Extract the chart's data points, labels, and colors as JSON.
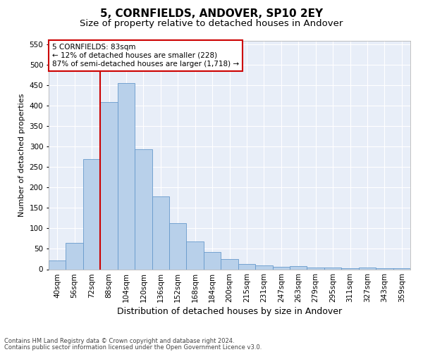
{
  "title": "5, CORNFIELDS, ANDOVER, SP10 2EY",
  "subtitle": "Size of property relative to detached houses in Andover",
  "xlabel": "Distribution of detached houses by size in Andover",
  "ylabel": "Number of detached properties",
  "categories": [
    "40sqm",
    "56sqm",
    "72sqm",
    "88sqm",
    "104sqm",
    "120sqm",
    "136sqm",
    "152sqm",
    "168sqm",
    "184sqm",
    "200sqm",
    "215sqm",
    "231sqm",
    "247sqm",
    "263sqm",
    "279sqm",
    "295sqm",
    "311sqm",
    "327sqm",
    "343sqm",
    "359sqm"
  ],
  "values": [
    22,
    65,
    270,
    410,
    455,
    293,
    178,
    113,
    68,
    43,
    25,
    13,
    10,
    6,
    7,
    5,
    4,
    3,
    5,
    3,
    2
  ],
  "bar_color": "#b8d0ea",
  "bar_edge_color": "#6699cc",
  "vline_color": "#cc0000",
  "vline_x_index": 2.5,
  "annotation_line1": "5 CORNFIELDS: 83sqm",
  "annotation_line2": "← 12% of detached houses are smaller (228)",
  "annotation_line3": "87% of semi-detached houses are larger (1,718) →",
  "annotation_box_facecolor": "#ffffff",
  "annotation_box_edgecolor": "#cc0000",
  "ylim": [
    0,
    560
  ],
  "yticks": [
    0,
    50,
    100,
    150,
    200,
    250,
    300,
    350,
    400,
    450,
    500,
    550
  ],
  "background_color": "#e8eef8",
  "grid_color": "#ffffff",
  "fig_facecolor": "#ffffff",
  "footer_line1": "Contains HM Land Registry data © Crown copyright and database right 2024.",
  "footer_line2": "Contains public sector information licensed under the Open Government Licence v3.0.",
  "title_fontsize": 11,
  "subtitle_fontsize": 9.5,
  "xlabel_fontsize": 9,
  "ylabel_fontsize": 8,
  "tick_fontsize": 7.5,
  "annotation_fontsize": 7.5,
  "footer_fontsize": 6
}
